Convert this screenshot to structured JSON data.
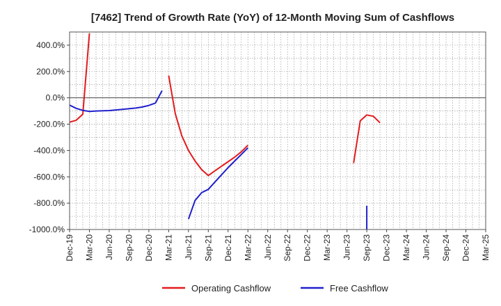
{
  "chart_data": {
    "type": "line",
    "title": "[7462]  Trend of Growth Rate (YoY) of 12-Month Moving Sum of Cashflows",
    "xlabel": "",
    "ylabel": "",
    "ylim": [
      -1000,
      500
    ],
    "y_ticks": [
      400,
      200,
      0,
      -200,
      -400,
      -600,
      -800,
      -1000
    ],
    "y_tick_labels": [
      "400.0%",
      "200.0%",
      "0.0%",
      "-200.0%",
      "-400.0%",
      "-600.0%",
      "-800.0%",
      "-1000.0%"
    ],
    "x_ticks": [
      "2019-12",
      "2020-03",
      "2020-06",
      "2020-09",
      "2020-12",
      "2021-03",
      "2021-06",
      "2021-09",
      "2021-12",
      "2022-03",
      "2022-06",
      "2022-09",
      "2022-12",
      "2023-03",
      "2023-06",
      "2023-09",
      "2023-12",
      "2024-03",
      "2024-06",
      "2024-09",
      "2024-12",
      "2025-03"
    ],
    "x_tick_labels": [
      "Dec-19",
      "Mar-20",
      "Jun-20",
      "Sep-20",
      "Dec-20",
      "Mar-21",
      "Jun-21",
      "Sep-21",
      "Dec-21",
      "Mar-22",
      "Jun-22",
      "Sep-22",
      "Dec-22",
      "Mar-23",
      "Jun-23",
      "Sep-23",
      "Dec-23",
      "Mar-24",
      "Jun-24",
      "Sep-24",
      "Dec-24",
      "Mar-25"
    ],
    "grid": true,
    "legend_position": "bottom-center",
    "series": [
      {
        "name": "Operating Cashflow",
        "color": "#e31a1c",
        "segments": [
          [
            [
              "2019-12",
              -185
            ],
            [
              "2020-01",
              -170
            ],
            [
              "2020-02",
              -125
            ],
            [
              "2020-03",
              490
            ]
          ],
          [
            [
              "2021-03",
              170
            ],
            [
              "2021-04",
              -120
            ],
            [
              "2021-05",
              -290
            ],
            [
              "2021-06",
              -400
            ],
            [
              "2021-07",
              -480
            ],
            [
              "2021-08",
              -545
            ],
            [
              "2021-09",
              -590
            ],
            [
              "2021-10",
              -555
            ],
            [
              "2021-11",
              -520
            ],
            [
              "2021-12",
              -485
            ],
            [
              "2022-01",
              -450
            ],
            [
              "2022-02",
              -410
            ],
            [
              "2022-03",
              -360
            ]
          ],
          [
            [
              "2023-07",
              -495
            ],
            [
              "2023-08",
              -175
            ],
            [
              "2023-09",
              -130
            ],
            [
              "2023-10",
              -140
            ],
            [
              "2023-11",
              -190
            ]
          ]
        ]
      },
      {
        "name": "Free Cashflow",
        "color": "#1f1fcc",
        "segments": [
          [
            [
              "2019-12",
              -55
            ],
            [
              "2020-01",
              -80
            ],
            [
              "2020-02",
              -95
            ],
            [
              "2020-03",
              -103
            ],
            [
              "2020-04",
              -100
            ],
            [
              "2020-06",
              -97
            ],
            [
              "2020-08",
              -88
            ],
            [
              "2020-10",
              -78
            ],
            [
              "2020-11",
              -70
            ],
            [
              "2020-12",
              -58
            ],
            [
              "2021-01",
              -40
            ],
            [
              "2021-02",
              55
            ]
          ],
          [
            [
              "2021-06",
              -920
            ],
            [
              "2021-07",
              -780
            ],
            [
              "2021-08",
              -720
            ],
            [
              "2021-09",
              -695
            ],
            [
              "2021-10",
              -640
            ],
            [
              "2021-11",
              -585
            ],
            [
              "2021-12",
              -530
            ],
            [
              "2022-01",
              -480
            ],
            [
              "2022-02",
              -430
            ],
            [
              "2022-03",
              -380
            ]
          ],
          [
            [
              "2023-09",
              -820
            ],
            [
              "2023-09",
              -1000
            ]
          ]
        ]
      }
    ]
  }
}
